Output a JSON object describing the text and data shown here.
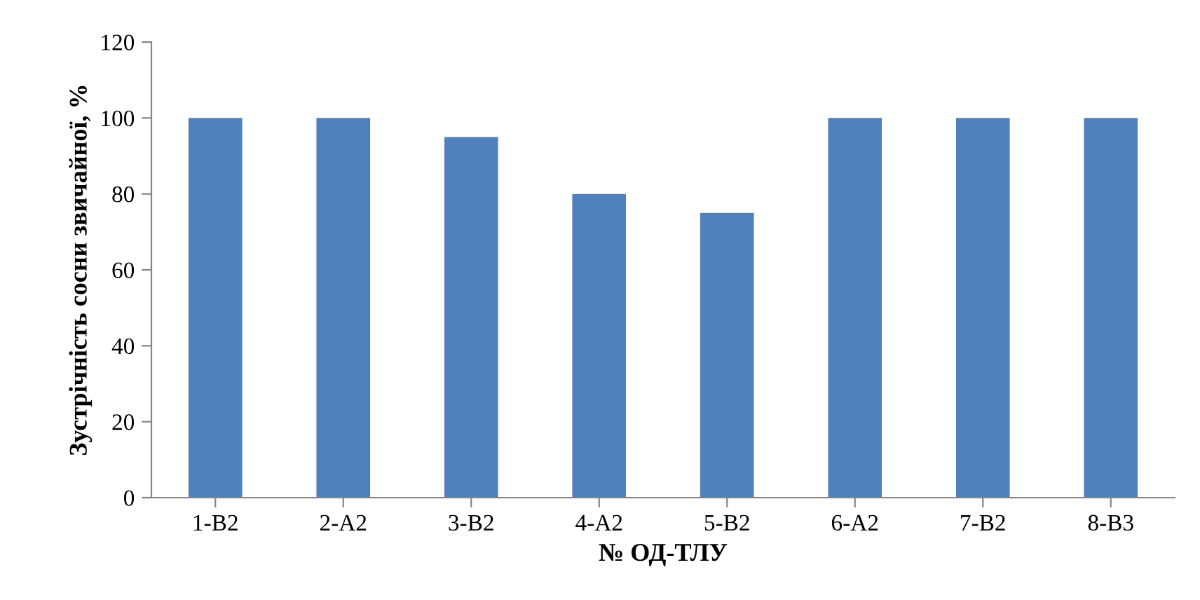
{
  "chart_data": {
    "type": "bar",
    "xlabel": "№ ОД-ТЛУ",
    "ylabel": "Зустрічність сосни звичайної, %",
    "categories": [
      "1-В2",
      "2-А2",
      "3-В2",
      "4-А2",
      "5-В2",
      "6-А2",
      "7-В2",
      "8-В3"
    ],
    "values": [
      100,
      100,
      95,
      80,
      75,
      100,
      100,
      100
    ],
    "color": "#4f81bd",
    "ylim": [
      0,
      120
    ],
    "yticks": [
      0,
      20,
      40,
      60,
      80,
      100,
      120
    ],
    "grid": false,
    "legend": false
  }
}
